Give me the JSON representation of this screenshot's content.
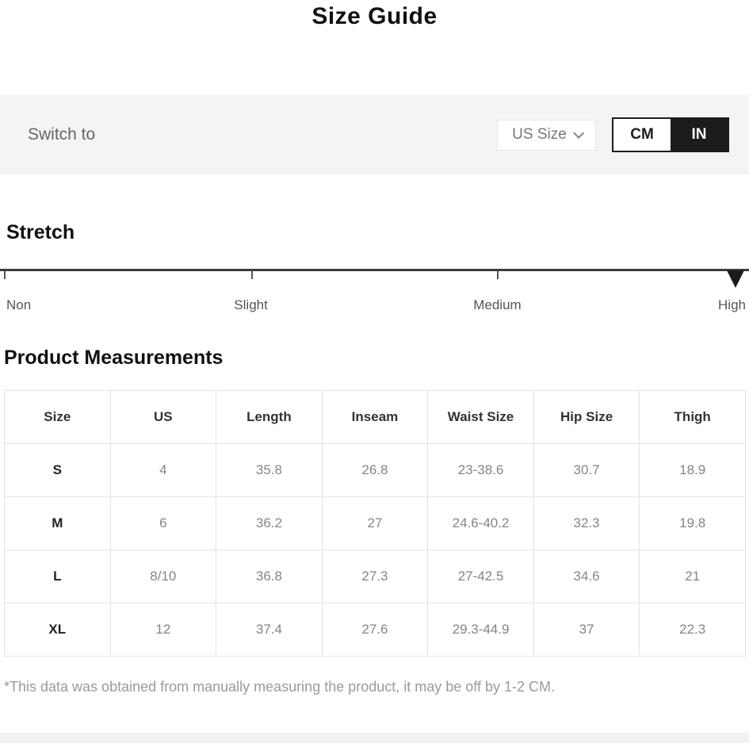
{
  "page": {
    "title": "Size Guide"
  },
  "switch_bar": {
    "label": "Switch to",
    "size_standard_dropdown": {
      "value": "US Size"
    },
    "unit_toggle": {
      "cm_label": "CM",
      "in_label": "IN",
      "selected": "IN"
    }
  },
  "stretch": {
    "heading": "Stretch",
    "levels": [
      "Non",
      "Slight",
      "Medium",
      "High"
    ],
    "selected_level": "High"
  },
  "measurements": {
    "heading": "Product Measurements",
    "columns": [
      "Size",
      "US",
      "Length",
      "Inseam",
      "Waist Size",
      "Hip Size",
      "Thigh"
    ],
    "rows": [
      [
        "S",
        "4",
        "35.8",
        "26.8",
        "23-38.6",
        "30.7",
        "18.9"
      ],
      [
        "M",
        "6",
        "36.2",
        "27",
        "24.6-40.2",
        "32.3",
        "19.8"
      ],
      [
        "L",
        "8/10",
        "36.8",
        "27.3",
        "27-42.5",
        "34.6",
        "21"
      ],
      [
        "XL",
        "12",
        "37.4",
        "27.6",
        "29.3-44.9",
        "37",
        "22.3"
      ]
    ]
  },
  "footnote": "*This data was obtained from manually measuring the product, it may be off by 1-2 CM.",
  "colors": {
    "accent_black": "#1c1c1c",
    "bar_gray": "#f4f4f4",
    "border_gray": "#e3e3e3",
    "value_text_gray": "#858585"
  }
}
